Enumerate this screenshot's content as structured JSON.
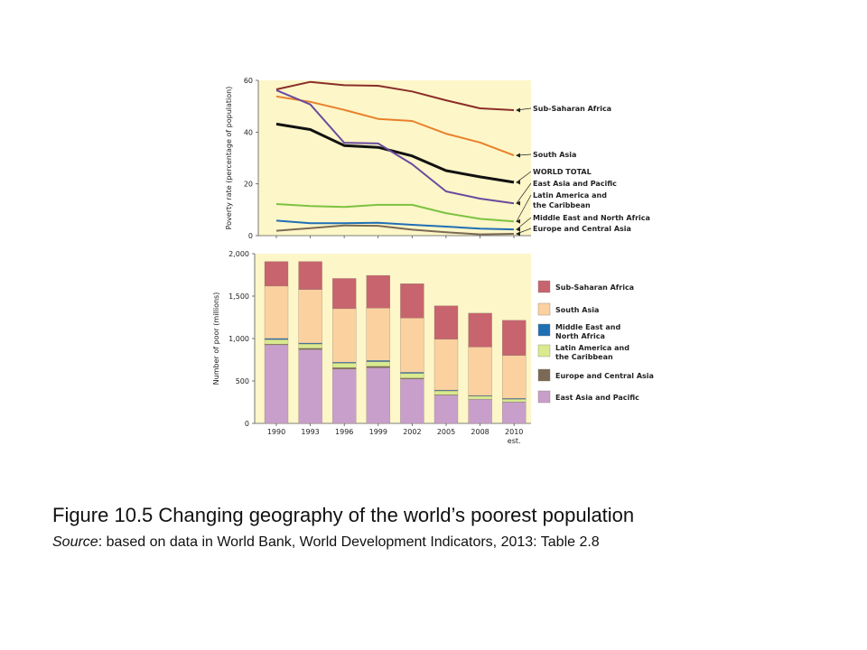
{
  "caption": {
    "title": "Figure 10.5 Changing geography of the world’s poorest population",
    "source_label": "Source",
    "source_text": ": based on data in World Bank, World Development Indicators, 2013: Table 2.8"
  },
  "chart_data": [
    {
      "type": "line",
      "ylabel": "Poverty rate (percentage of population)",
      "ylim": [
        0,
        60
      ],
      "yticks": [
        0,
        20,
        40,
        60
      ],
      "x": [
        "1990",
        "1993",
        "1996",
        "1999",
        "2002",
        "2005",
        "2008",
        "2010"
      ],
      "grid": false,
      "background": "#fdf6c8",
      "series": [
        {
          "name": "Sub-Saharan Africa",
          "color": "#8b2e2a",
          "values": [
            56.5,
            59.4,
            58.1,
            57.9,
            55.7,
            52.3,
            49.2,
            48.5
          ]
        },
        {
          "name": "South Asia",
          "color": "#e8802a",
          "values": [
            53.8,
            51.7,
            48.6,
            45.1,
            44.3,
            39.4,
            36.0,
            31.0
          ]
        },
        {
          "name": "WORLD TOTAL",
          "color": "#111111",
          "values": [
            43.1,
            41.0,
            34.8,
            34.1,
            30.8,
            25.1,
            22.7,
            20.6
          ]
        },
        {
          "name": "East Asia and Pacific",
          "color": "#6a4a9e",
          "values": [
            56.2,
            50.7,
            35.9,
            35.6,
            27.6,
            17.1,
            14.3,
            12.5
          ]
        },
        {
          "name": "Latin America and the Caribbean",
          "color": "#7cc242",
          "values": [
            12.2,
            11.4,
            11.1,
            11.9,
            11.9,
            8.7,
            6.5,
            5.5
          ]
        },
        {
          "name": "Middle East and North Africa",
          "color": "#1f6fb5",
          "values": [
            5.8,
            4.8,
            4.8,
            5.0,
            4.2,
            3.5,
            2.7,
            2.4
          ]
        },
        {
          "name": "Europe and Central Asia",
          "color": "#7a6a55",
          "values": [
            1.9,
            2.9,
            3.9,
            3.8,
            2.3,
            1.3,
            0.5,
            0.7
          ]
        }
      ]
    },
    {
      "type": "bar",
      "stacked": true,
      "ylabel": "Number of poor (millions)",
      "ylim": [
        0,
        2000
      ],
      "yticks": [
        0,
        500,
        1000,
        1500,
        2000
      ],
      "ytick_labels": [
        "0",
        "500",
        "1,000",
        "1,500",
        "2,000"
      ],
      "categories": [
        "1990",
        "1993",
        "1996",
        "1999",
        "2002",
        "2005",
        "2008",
        "2010"
      ],
      "category_sublabels": [
        "",
        "",
        "",
        "",
        "",
        "",
        "",
        "est."
      ],
      "background": "#fdf6c8",
      "legend": "right",
      "series": [
        {
          "name": "East Asia and Pacific",
          "color": "#c89fcb",
          "values": [
            926,
            871,
            640,
            655,
            523,
            332,
            284,
            251
          ]
        },
        {
          "name": "Europe and Central Asia",
          "color": "#7a6a55",
          "values": [
            9,
            14,
            18,
            18,
            11,
            6,
            2,
            3
          ]
        },
        {
          "name": "Latin America and the Caribbean",
          "color": "#d9ea8f",
          "values": [
            53,
            51,
            52,
            55,
            56,
            45,
            34,
            32
          ]
        },
        {
          "name": "Middle East and North Africa",
          "color": "#1f6fb5",
          "values": [
            13,
            11,
            12,
            13,
            12,
            10,
            9,
            8
          ]
        },
        {
          "name": "South Asia",
          "color": "#fbd1a0",
          "values": [
            617,
            631,
            630,
            619,
            640,
            598,
            571,
            507
          ]
        },
        {
          "name": "Sub-Saharan Africa",
          "color": "#c7646e",
          "values": [
            290,
            330,
            356,
            384,
            405,
            395,
            399,
            414
          ]
        }
      ]
    }
  ]
}
